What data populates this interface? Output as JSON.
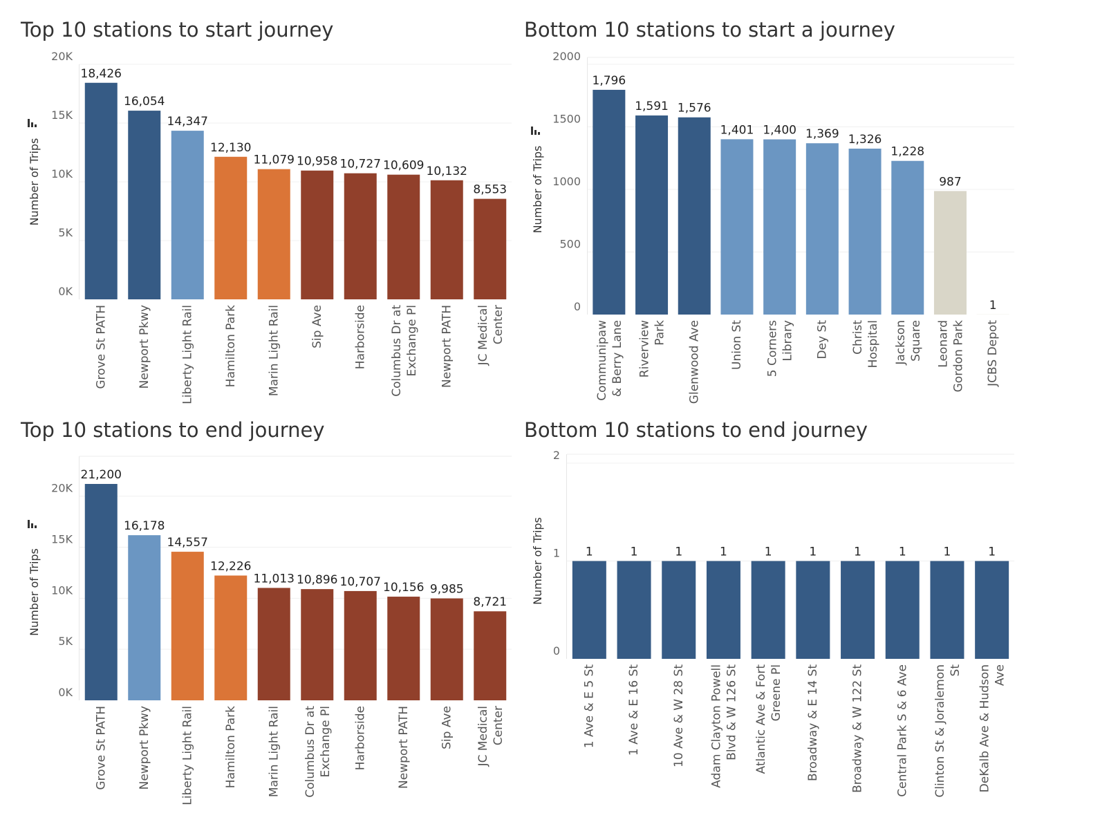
{
  "colors": {
    "dark_blue": "#365b85",
    "light_blue": "#6b96c2",
    "orange": "#db7537",
    "brown": "#91402b",
    "grey": "#d9d6c8"
  },
  "chart_data": [
    {
      "id": "top-start",
      "type": "bar",
      "title": "Top 10 stations to start journey",
      "ylabel": "Number of Trips",
      "ylim": [
        0,
        20000
      ],
      "yticks": [
        0,
        5000,
        10000,
        15000,
        20000
      ],
      "ytick_labels": [
        "0K",
        "5K",
        "10K",
        "15K",
        "20K"
      ],
      "sort_icon": true,
      "categories": [
        [
          "Grove St PATH"
        ],
        [
          "Newport Pkwy"
        ],
        [
          "Liberty Light Rail"
        ],
        [
          "Hamilton Park"
        ],
        [
          "Marin Light Rail"
        ],
        [
          "Sip Ave"
        ],
        [
          "Harborside"
        ],
        [
          "Columbus Dr at",
          "Exchange Pl"
        ],
        [
          "Newport PATH"
        ],
        [
          "JC Medical",
          "Center"
        ]
      ],
      "values": [
        18426,
        16054,
        14347,
        12130,
        11079,
        10958,
        10727,
        10609,
        10132,
        8553
      ],
      "value_labels": [
        "18,426",
        "16,054",
        "14,347",
        "12,130",
        "11,079",
        "10,958",
        "10,727",
        "10,609",
        "10,132",
        "8,553"
      ],
      "bar_colors": [
        "#365b85",
        "#365b85",
        "#6b96c2",
        "#db7537",
        "#db7537",
        "#91402b",
        "#91402b",
        "#91402b",
        "#91402b",
        "#91402b"
      ]
    },
    {
      "id": "bottom-start",
      "type": "bar",
      "title": "Bottom 10 stations to start a journey",
      "ylabel": "Number of Trips",
      "ylim": [
        0,
        2000
      ],
      "yticks": [
        0,
        500,
        1000,
        1500,
        2000
      ],
      "ytick_labels": [
        "0",
        "500",
        "1000",
        "1500",
        "2000"
      ],
      "sort_icon": true,
      "categories": [
        [
          "Communipaw",
          "& Berry Lane"
        ],
        [
          "Riverview",
          "Park"
        ],
        [
          "Glenwood Ave"
        ],
        [
          "Union St"
        ],
        [
          "5 Corners",
          "Library"
        ],
        [
          "Dey St"
        ],
        [
          "Christ",
          "Hospital"
        ],
        [
          "Jackson",
          "Square"
        ],
        [
          "Leonard",
          "Gordon Park"
        ],
        [
          "JCBS Depot"
        ]
      ],
      "values": [
        1796,
        1591,
        1576,
        1401,
        1400,
        1369,
        1326,
        1228,
        987,
        1
      ],
      "value_labels": [
        "1,796",
        "1,591",
        "1,576",
        "1,401",
        "1,400",
        "1,369",
        "1,326",
        "1,228",
        "987",
        "1"
      ],
      "bar_colors": [
        "#365b85",
        "#365b85",
        "#365b85",
        "#6b96c2",
        "#6b96c2",
        "#6b96c2",
        "#6b96c2",
        "#6b96c2",
        "#d9d6c8",
        "#d9d6c8"
      ]
    },
    {
      "id": "top-end",
      "type": "bar",
      "title": "Top 10 stations to end journey",
      "ylabel": "Number of Trips",
      "ylim": [
        0,
        21200
      ],
      "yticks": [
        0,
        5000,
        10000,
        15000,
        20000
      ],
      "ytick_labels": [
        "0K",
        "5K",
        "10K",
        "15K",
        "20K"
      ],
      "sort_icon": true,
      "categories": [
        [
          "Grove St PATH"
        ],
        [
          "Newport Pkwy"
        ],
        [
          "Liberty Light Rail"
        ],
        [
          "Hamilton Park"
        ],
        [
          "Marin Light Rail"
        ],
        [
          "Columbus Dr at",
          "Exchange Pl"
        ],
        [
          "Harborside"
        ],
        [
          "Newport PATH"
        ],
        [
          "Sip Ave"
        ],
        [
          "JC Medical",
          "Center"
        ]
      ],
      "values": [
        21200,
        16178,
        14557,
        12226,
        11013,
        10896,
        10707,
        10156,
        9985,
        8721
      ],
      "value_labels": [
        "21,200",
        "16,178",
        "14,557",
        "12,226",
        "11,013",
        "10,896",
        "10,707",
        "10,156",
        "9,985",
        "8,721"
      ],
      "bar_colors": [
        "#365b85",
        "#6b96c2",
        "#db7537",
        "#db7537",
        "#91402b",
        "#91402b",
        "#91402b",
        "#91402b",
        "#91402b",
        "#91402b"
      ]
    },
    {
      "id": "bottom-end",
      "type": "bar",
      "title": "Bottom 10 stations to end journey",
      "ylabel": "Number of Trips",
      "ylim": [
        0,
        2
      ],
      "yticks": [
        0,
        1,
        2
      ],
      "ytick_labels": [
        "0",
        "1",
        "2"
      ],
      "sort_icon": false,
      "categories": [
        [
          "1 Ave & E 5 St"
        ],
        [
          "1 Ave & E 16 St"
        ],
        [
          "10 Ave & W 28 St"
        ],
        [
          "Adam Clayton Powell",
          "Blvd & W 126 St"
        ],
        [
          "Atlantic Ave & Fort",
          "Greene Pl"
        ],
        [
          "Broadway & E 14 St"
        ],
        [
          "Broadway & W 122 St"
        ],
        [
          "Central Park S & 6 Ave"
        ],
        [
          "Clinton St & Joralemon",
          "St"
        ],
        [
          "DeKalb Ave & Hudson",
          "Ave"
        ]
      ],
      "values": [
        1,
        1,
        1,
        1,
        1,
        1,
        1,
        1,
        1,
        1
      ],
      "value_labels": [
        "1",
        "1",
        "1",
        "1",
        "1",
        "1",
        "1",
        "1",
        "1",
        "1"
      ],
      "bar_colors": [
        "#365b85",
        "#365b85",
        "#365b85",
        "#365b85",
        "#365b85",
        "#365b85",
        "#365b85",
        "#365b85",
        "#365b85",
        "#365b85"
      ]
    }
  ]
}
